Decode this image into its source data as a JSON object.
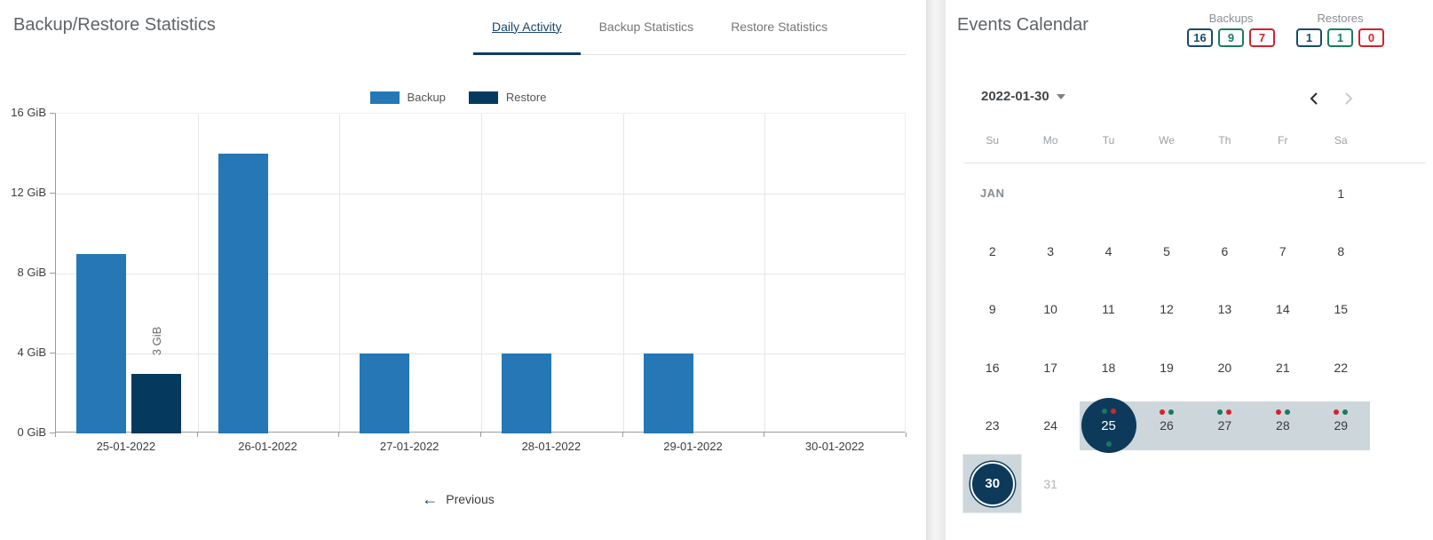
{
  "left_panel": {
    "title": "Backup/Restore Statistics",
    "tabs": [
      {
        "label": "Daily Activity",
        "active": true
      },
      {
        "label": "Backup Statistics",
        "active": false
      },
      {
        "label": "Restore Statistics",
        "active": false
      }
    ],
    "previous_button": {
      "label": "Previous"
    }
  },
  "icons": {
    "previous_arrow": "←"
  },
  "chart_data": {
    "type": "bar",
    "title": "Daily Activity",
    "categories": [
      "25-01-2022",
      "26-01-2022",
      "27-01-2022",
      "28-01-2022",
      "29-01-2022",
      "30-01-2022"
    ],
    "series": [
      {
        "name": "Backup",
        "color": "#2577b5",
        "values": [
          9,
          14,
          4,
          4,
          4,
          0
        ]
      },
      {
        "name": "Restore",
        "color": "#05395e",
        "values": [
          3,
          0,
          0,
          0,
          0,
          0
        ]
      }
    ],
    "bar_labels": [
      {
        "series_index": 1,
        "category_index": 0,
        "text": "3 GiB"
      }
    ],
    "yticks": [
      {
        "value": 0,
        "label": "0 GiB"
      },
      {
        "value": 4,
        "label": "4 GiB"
      },
      {
        "value": 8,
        "label": "8 GiB"
      },
      {
        "value": 12,
        "label": "12 GiB"
      },
      {
        "value": 16,
        "label": "16 GiB"
      }
    ],
    "ylim": [
      0,
      16
    ],
    "grid": true,
    "legend_position": "top"
  },
  "right_panel": {
    "title": "Events Calendar",
    "counters": [
      {
        "label": "Backups",
        "badges": [
          {
            "value": "16",
            "color": "#174a6b"
          },
          {
            "value": "9",
            "color": "#177e5f"
          },
          {
            "value": "7",
            "color": "#d2232e"
          }
        ]
      },
      {
        "label": "Restores",
        "badges": [
          {
            "value": "1",
            "color": "#174a6b"
          },
          {
            "value": "1",
            "color": "#177e5f"
          },
          {
            "value": "0",
            "color": "#d2232e"
          }
        ]
      }
    ],
    "date_selector": {
      "value": "2022-01-30"
    },
    "nav": {
      "prev_enabled": true,
      "next_enabled": false
    },
    "calendar": {
      "weekdays": [
        "Su",
        "Mo",
        "Tu",
        "We",
        "Th",
        "Fr",
        "Sa"
      ],
      "band_color": "#cdd6db",
      "selected_color": "#0d3a5b",
      "dot_colors": {
        "green": "#177a5e",
        "red": "#d2232e"
      },
      "weeks": [
        [
          {
            "text": "JAN",
            "type": "month-label"
          },
          null,
          null,
          null,
          null,
          null,
          {
            "text": "1"
          }
        ],
        [
          {
            "text": "2"
          },
          {
            "text": "3"
          },
          {
            "text": "4"
          },
          {
            "text": "5"
          },
          {
            "text": "6"
          },
          {
            "text": "7"
          },
          {
            "text": "8"
          }
        ],
        [
          {
            "text": "9"
          },
          {
            "text": "10"
          },
          {
            "text": "11"
          },
          {
            "text": "12"
          },
          {
            "text": "13"
          },
          {
            "text": "14"
          },
          {
            "text": "15"
          }
        ],
        [
          {
            "text": "16"
          },
          {
            "text": "17"
          },
          {
            "text": "18"
          },
          {
            "text": "19"
          },
          {
            "text": "20"
          },
          {
            "text": "21"
          },
          {
            "text": "22"
          }
        ],
        [
          {
            "text": "23"
          },
          {
            "text": "24"
          },
          {
            "text": "25",
            "circled": true,
            "in_band": true,
            "dots_top": [
              "green",
              "red"
            ],
            "dots_bottom": [
              "green"
            ]
          },
          {
            "text": "26",
            "in_band": true,
            "dots_top": [
              "red",
              "green"
            ]
          },
          {
            "text": "27",
            "in_band": true,
            "dots_top": [
              "green",
              "red"
            ]
          },
          {
            "text": "28",
            "in_band": true,
            "dots_top": [
              "red",
              "green"
            ]
          },
          {
            "text": "29",
            "in_band": true,
            "dots_top": [
              "red",
              "green"
            ]
          }
        ],
        [
          {
            "text": "30",
            "selected": true
          },
          {
            "text": "31",
            "muted": true
          },
          null,
          null,
          null,
          null,
          null
        ]
      ]
    }
  }
}
